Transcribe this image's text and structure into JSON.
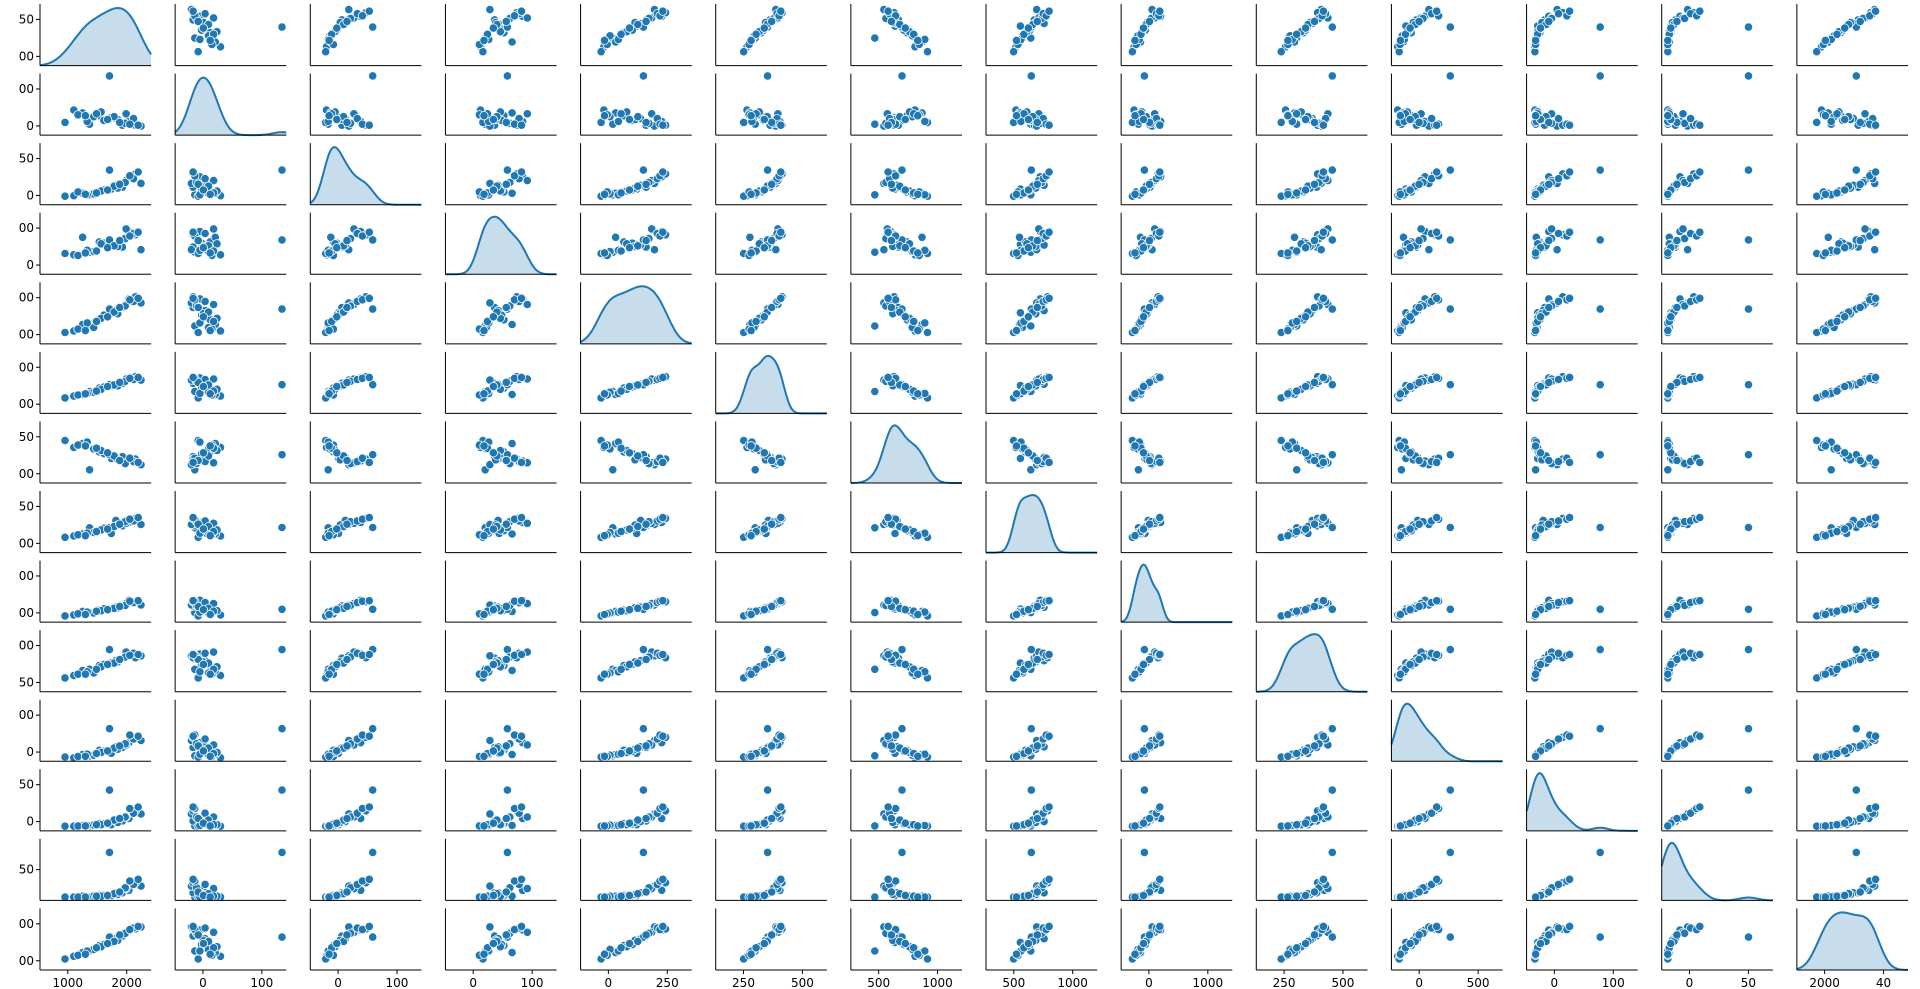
{
  "chart_data": {
    "type": "scatter",
    "kind": "pairplot",
    "n_vars": 14,
    "n_points": 28,
    "color": "#1f77b4",
    "diag_kind": "kde",
    "grid": false,
    "legend": "none",
    "variables": [
      {
        "lim": [
          950,
          2150
        ],
        "xticks": [
          "1000",
          "2000"
        ],
        "yticks": [
          "50",
          "00"
        ]
      },
      {
        "lim": [
          -15,
          115
        ],
        "xticks": [
          "0",
          "100"
        ],
        "yticks": [
          "00",
          "0"
        ]
      },
      {
        "lim": [
          -15,
          115
        ],
        "xticks": [
          "0",
          "100"
        ],
        "yticks": [
          "50",
          "0"
        ]
      },
      {
        "lim": [
          -30,
          160
        ],
        "xticks": [
          "0",
          "100"
        ],
        "yticks": [
          "00",
          "0"
        ]
      },
      {
        "lim": [
          -30,
          370
        ],
        "xticks": [
          "0",
          "250"
        ],
        "yticks": [
          "00",
          "00"
        ]
      },
      {
        "lim": [
          80,
          620
        ],
        "xticks": [
          "250",
          "500"
        ],
        "yticks": [
          "00",
          "00"
        ]
      },
      {
        "lim": [
          280,
          1080
        ],
        "xticks": [
          "500",
          "1000"
        ],
        "yticks": [
          "50",
          "00"
        ]
      },
      {
        "lim": [
          380,
          1130
        ],
        "xticks": [
          "500",
          "1000"
        ],
        "yticks": [
          "50",
          "00"
        ]
      },
      {
        "lim": [
          -20,
          1280
        ],
        "xticks": [
          "0",
          "1000"
        ],
        "yticks": [
          "00",
          "00"
        ]
      },
      {
        "lim": [
          180,
          680
        ],
        "xticks": [
          "250",
          "500"
        ],
        "yticks": [
          "00",
          "50"
        ]
      },
      {
        "lim": [
          -10,
          560
        ],
        "xticks": [
          "0",
          "500"
        ],
        "yticks": [
          "00",
          "0"
        ]
      },
      {
        "lim": [
          -10,
          150
        ],
        "xticks": [
          "0",
          "100"
        ],
        "yticks": [
          "50",
          "0"
        ]
      },
      {
        "lim": [
          -3,
          70
        ],
        "xticks": [
          "0",
          "50"
        ],
        "yticks": [
          "50"
        ]
      },
      {
        "lim": [
          1850,
          4150
        ],
        "xticks": [
          "2000",
          "40"
        ],
        "yticks": [
          "00",
          "00"
        ]
      }
    ],
    "values": [
      [
        1720,
        22,
        18,
        62,
        172,
        324,
        598,
        612,
        258,
        412,
        64,
        6,
        3,
        2880
      ],
      [
        1485,
        8,
        6,
        38,
        86,
        272,
        452,
        682,
        182,
        362,
        41,
        3,
        1,
        2560
      ],
      [
        1840,
        6,
        22,
        54,
        206,
        344,
        622,
        706,
        318,
        452,
        118,
        16,
        6,
        3120
      ],
      [
        1315,
        38,
        4,
        30,
        54,
        232,
        742,
        582,
        132,
        312,
        22,
        2,
        1,
        2360
      ],
      [
        1910,
        14,
        44,
        102,
        262,
        392,
        566,
        746,
        442,
        486,
        162,
        22,
        9,
        3340
      ],
      [
        1590,
        26,
        12,
        70,
        126,
        302,
        684,
        646,
        232,
        392,
        92,
        9,
        3,
        2760
      ],
      [
        2040,
        4,
        30,
        46,
        236,
        372,
        518,
        722,
        342,
        472,
        182,
        34,
        14,
        3460
      ],
      [
        1410,
        32,
        9,
        84,
        96,
        246,
        792,
        606,
        206,
        352,
        52,
        4,
        2,
        2500
      ],
      [
        1770,
        20,
        26,
        60,
        186,
        336,
        612,
        772,
        296,
        432,
        124,
        14,
        6,
        3020
      ],
      [
        1220,
        12,
        3,
        34,
        44,
        216,
        832,
        566,
        112,
        292,
        30,
        2,
        1,
        2260
      ],
      [
        1880,
        30,
        36,
        110,
        226,
        382,
        542,
        736,
        372,
        502,
        142,
        26,
        11,
        3260
      ],
      [
        1640,
        16,
        16,
        66,
        156,
        312,
        662,
        676,
        262,
        402,
        82,
        8,
        3,
        2800
      ],
      [
        1980,
        6,
        50,
        92,
        276,
        402,
        592,
        796,
        412,
        456,
        212,
        42,
        18,
        3380
      ],
      [
        1530,
        24,
        8,
        40,
        76,
        266,
        722,
        626,
        176,
        332,
        46,
        5,
        2,
        2620
      ],
      [
        1700,
        110,
        58,
        76,
        196,
        332,
        648,
        686,
        252,
        522,
        292,
        96,
        54,
        3080
      ],
      [
        1790,
        18,
        20,
        56,
        166,
        322,
        582,
        716,
        282,
        422,
        102,
        12,
        4,
        2960
      ],
      [
        1360,
        28,
        12,
        28,
        66,
        242,
        772,
        596,
        156,
        322,
        34,
        3,
        1,
        2400
      ],
      [
        1870,
        10,
        32,
        80,
        216,
        362,
        532,
        756,
        332,
        462,
        152,
        26,
        12,
        3220
      ],
      [
        1610,
        34,
        14,
        64,
        136,
        292,
        702,
        656,
        222,
        382,
        72,
        6,
        2,
        2720
      ],
      [
        1960,
        20,
        40,
        96,
        246,
        378,
        558,
        766,
        392,
        492,
        196,
        36,
        16,
        3420
      ],
      [
        1460,
        14,
        6,
        44,
        106,
        256,
        812,
        616,
        192,
        342,
        56,
        4,
        1,
        2560
      ],
      [
        1750,
        24,
        24,
        58,
        176,
        330,
        632,
        696,
        272,
        412,
        112,
        18,
        5,
        2920
      ],
      [
        1920,
        8,
        46,
        88,
        256,
        388,
        602,
        786,
        422,
        476,
        232,
        48,
        20,
        3360
      ],
      [
        1560,
        30,
        10,
        42,
        116,
        276,
        732,
        636,
        212,
        362,
        62,
        6,
        2,
        2680
      ],
      [
        1810,
        12,
        28,
        74,
        206,
        352,
        572,
        726,
        312,
        442,
        132,
        22,
        7,
        3160
      ],
      [
        1680,
        18,
        16,
        52,
        146,
        316,
        672,
        666,
        242,
        402,
        86,
        10,
        3,
        2840
      ],
      [
        2010,
        6,
        54,
        100,
        266,
        396,
        548,
        806,
        432,
        482,
        222,
        52,
        22,
        3480
      ],
      [
        1440,
        26,
        7,
        36,
        56,
        252,
        762,
        586,
        142,
        322,
        36,
        3,
        1,
        2440
      ]
    ]
  }
}
